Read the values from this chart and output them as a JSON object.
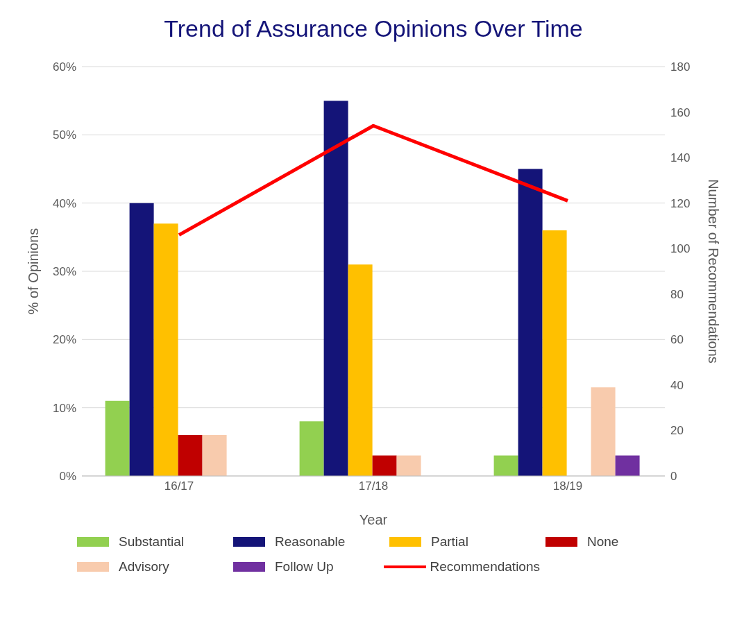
{
  "chart_data": {
    "type": "bar",
    "title": "Trend of Assurance Opinions Over Time",
    "xlabel": "Year",
    "ylabel": "% of Opinions",
    "y2label": "Number of Recommendations",
    "categories": [
      "16/17",
      "17/18",
      "18/19"
    ],
    "series": [
      {
        "name": "Substantial",
        "color": "#92d050",
        "values": [
          11,
          8,
          3
        ]
      },
      {
        "name": "Reasonable",
        "color": "#141478",
        "values": [
          40,
          55,
          45
        ]
      },
      {
        "name": "Partial",
        "color": "#ffc000",
        "values": [
          37,
          31,
          36
        ]
      },
      {
        "name": "None",
        "color": "#c00000",
        "values": [
          6,
          3,
          null
        ]
      },
      {
        "name": "Advisory",
        "color": "#f8cbad",
        "values": [
          6,
          3,
          13
        ]
      },
      {
        "name": "Follow Up",
        "color": "#7030a0",
        "values": [
          null,
          null,
          3
        ]
      },
      {
        "name": "Recommendations",
        "type": "line",
        "axis": "y2",
        "color": "#ff0000",
        "values": [
          106,
          154,
          121
        ]
      }
    ],
    "ylim": [
      0,
      60
    ],
    "yticks": [
      {
        "value": 0,
        "label": "0%"
      },
      {
        "value": 10,
        "label": "10%"
      },
      {
        "value": 20,
        "label": "20%"
      },
      {
        "value": 30,
        "label": "30%"
      },
      {
        "value": 40,
        "label": "40%"
      },
      {
        "value": 50,
        "label": "50%"
      },
      {
        "value": 60,
        "label": "60%"
      }
    ],
    "y2lim": [
      0,
      180
    ],
    "y2ticks": [
      0,
      20,
      40,
      60,
      80,
      100,
      120,
      140,
      160,
      180
    ],
    "grid": "y",
    "legend": "bottom",
    "marker": "none"
  }
}
